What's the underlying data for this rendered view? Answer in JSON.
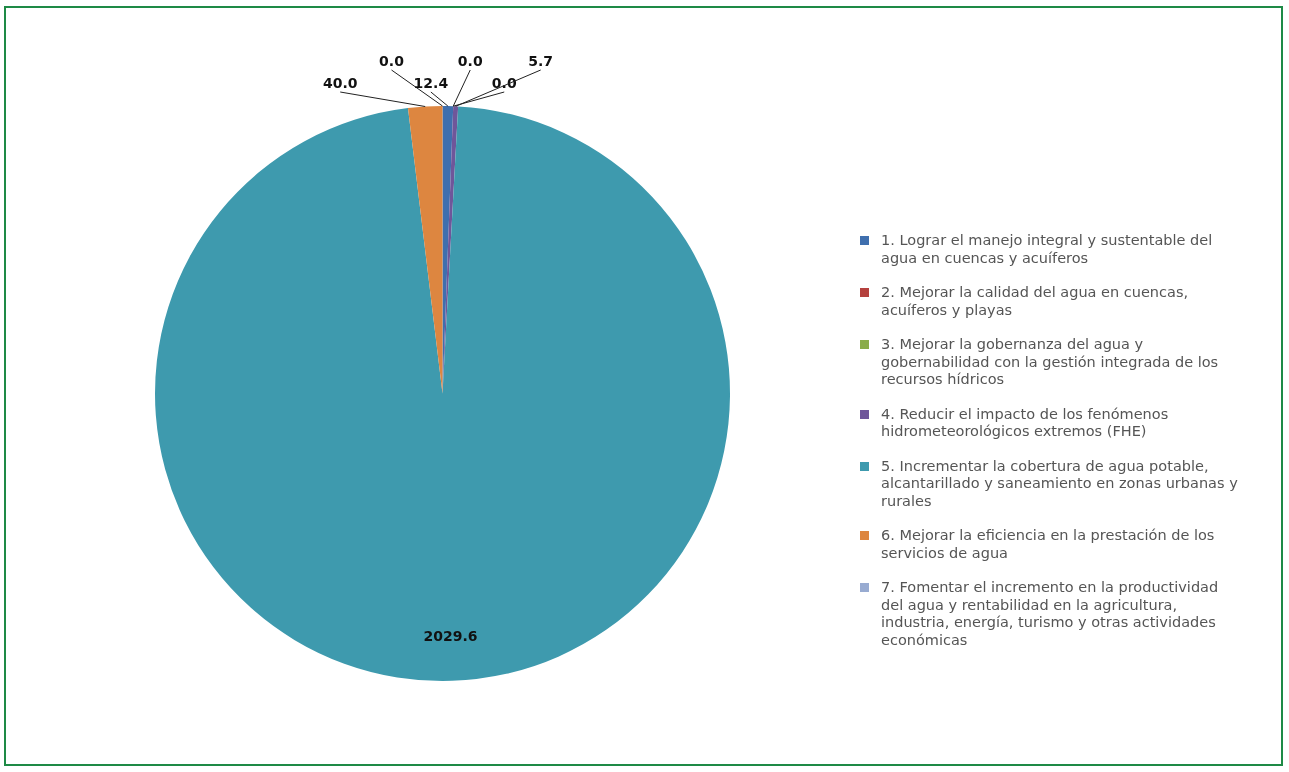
{
  "chart_data": {
    "type": "pie",
    "categories": [
      "1. Lograr el manejo integral y sustentable del agua en cuencas y acuíferos",
      "2. Mejorar la calidad del agua en cuencas, acuíferos y playas",
      "3. Mejorar la gobernanza del agua y gobernabilidad con la gestión integrada de los recursos hídricos",
      "4. Reducir el impacto de los fenómenos hidrometeorológicos extremos (FHE)",
      "5. Incrementar la cobertura de agua potable, alcantarillado y saneamiento en zonas urbanas y rurales",
      "6. Mejorar la eficiencia en la prestación de los servicios de agua",
      "7. Fomentar el incremento en la productividad del agua y rentabilidad en la agricultura, industria, energía, turismo y otras actividades económicas"
    ],
    "values": [
      12.4,
      0,
      0,
      5.7,
      2029.6,
      40,
      0
    ],
    "value_labels": [
      "12.4",
      "0.0",
      "0.0",
      "5.7",
      "2029.6",
      "40.0",
      "0.0"
    ],
    "colors": [
      "#3f6fae",
      "#b5413e",
      "#8aac4a",
      "#6f569a",
      "#3e9aae",
      "#dd8640",
      "#98abd1"
    ],
    "legend": "right"
  }
}
